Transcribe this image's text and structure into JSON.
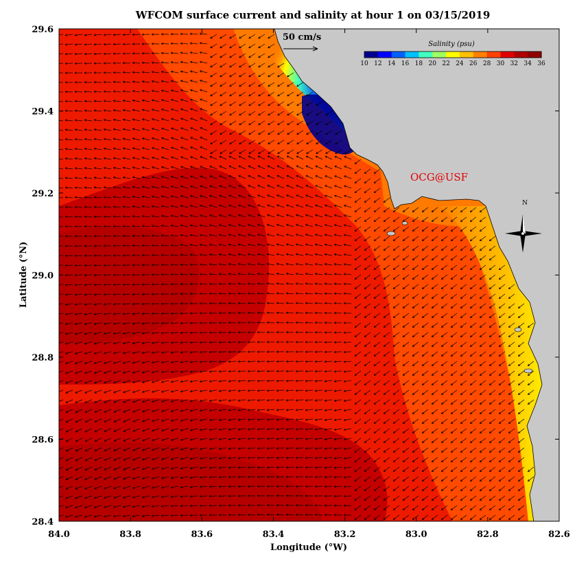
{
  "title": "WFCOM surface current and salinity at hour 1 on 03/15/2019",
  "xaxis": {
    "label": "Longitude (°W)",
    "ticks": [
      "84.0",
      "83.8",
      "83.6",
      "83.4",
      "83.2",
      "83.0",
      "82.8",
      "82.6"
    ],
    "range": [
      84.0,
      82.6
    ]
  },
  "yaxis": {
    "label": "Latitude (°N)",
    "ticks": [
      "29.6",
      "29.4",
      "29.2",
      "29.0",
      "28.8",
      "28.6",
      "28.4"
    ],
    "range": [
      28.4,
      29.6
    ]
  },
  "scale_arrow": {
    "label": "50 cm/s"
  },
  "colorbar": {
    "title": "Salinity (psu)",
    "ticks": [
      "10",
      "12",
      "14",
      "16",
      "18",
      "20",
      "22",
      "24",
      "26",
      "28",
      "30",
      "32",
      "34",
      "36"
    ],
    "range": [
      10,
      36
    ],
    "colors": [
      "#00008f",
      "#0000ff",
      "#0060ff",
      "#00c0ff",
      "#40ffbf",
      "#a0ff60",
      "#ffff00",
      "#ffc000",
      "#ff8000",
      "#ff4000",
      "#e00000",
      "#b00000",
      "#8f0000"
    ]
  },
  "credit": {
    "label": "OCG@USF",
    "color": "#e00000"
  },
  "compass": {
    "label": "N"
  },
  "colors": {
    "land": "#c8c8c8",
    "frame": "#000000"
  }
}
